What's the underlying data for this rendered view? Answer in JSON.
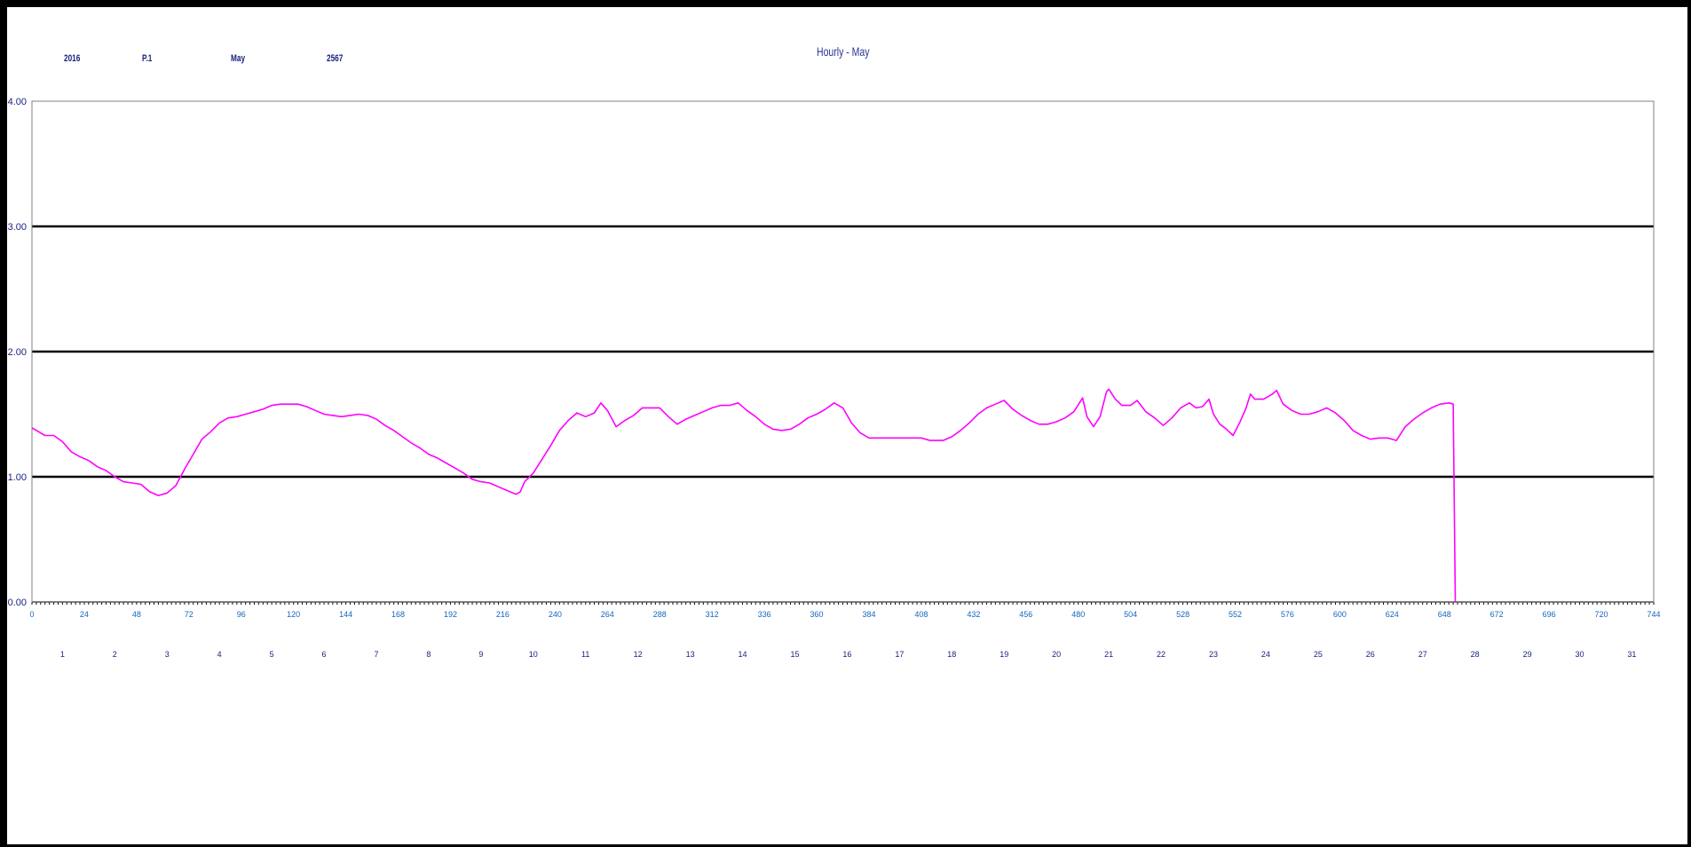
{
  "header": {
    "field1": "2016",
    "field2": "P.1",
    "field3": "May",
    "field4": "2567"
  },
  "chart_data": {
    "type": "line",
    "title": "Hourly - May",
    "xlabel": "",
    "ylabel": "",
    "xlim": [
      0,
      744
    ],
    "x_ticks": [
      0,
      24,
      48,
      72,
      96,
      120,
      144,
      168,
      192,
      216,
      240,
      264,
      288,
      312,
      336,
      360,
      384,
      408,
      432,
      456,
      480,
      504,
      528,
      552,
      576,
      600,
      624,
      648,
      672,
      696,
      720,
      744
    ],
    "x_tick_labels": [
      "0",
      "24",
      "48",
      "72",
      "96",
      "120",
      "144",
      "168",
      "192",
      "216",
      "240",
      "264",
      "288",
      "312",
      "336",
      "360",
      "384",
      "408",
      "432",
      "456",
      "480",
      "504",
      "528",
      "552",
      "576",
      "600",
      "624",
      "648",
      "672",
      "696",
      "720",
      "744"
    ],
    "day_labels": [
      "1",
      "2",
      "3",
      "4",
      "5",
      "6",
      "7",
      "8",
      "9",
      "10",
      "11",
      "12",
      "13",
      "14",
      "15",
      "16",
      "17",
      "18",
      "19",
      "20",
      "21",
      "22",
      "23",
      "24",
      "25",
      "26",
      "27",
      "28",
      "29",
      "30",
      "31"
    ],
    "ylim": [
      0,
      4
    ],
    "y_ticks": [
      0,
      1,
      2,
      3,
      4
    ],
    "y_tick_labels": [
      "0.00",
      "1.00",
      "2.00",
      "3.00",
      "4.00"
    ],
    "grid": true,
    "series": [
      {
        "color": "#ff00ff",
        "points": [
          [
            0,
            1.39
          ],
          [
            3,
            1.36
          ],
          [
            6,
            1.33
          ],
          [
            10,
            1.33
          ],
          [
            14,
            1.28
          ],
          [
            18,
            1.2
          ],
          [
            22,
            1.16
          ],
          [
            26,
            1.13
          ],
          [
            30,
            1.08
          ],
          [
            34,
            1.05
          ],
          [
            38,
            1.0
          ],
          [
            42,
            0.96
          ],
          [
            46,
            0.95
          ],
          [
            50,
            0.94
          ],
          [
            54,
            0.88
          ],
          [
            58,
            0.85
          ],
          [
            62,
            0.87
          ],
          [
            66,
            0.93
          ],
          [
            70,
            1.06
          ],
          [
            74,
            1.18
          ],
          [
            78,
            1.3
          ],
          [
            82,
            1.36
          ],
          [
            86,
            1.43
          ],
          [
            90,
            1.47
          ],
          [
            94,
            1.48
          ],
          [
            98,
            1.5
          ],
          [
            102,
            1.52
          ],
          [
            106,
            1.54
          ],
          [
            110,
            1.57
          ],
          [
            114,
            1.58
          ],
          [
            118,
            1.58
          ],
          [
            122,
            1.58
          ],
          [
            126,
            1.56
          ],
          [
            130,
            1.53
          ],
          [
            134,
            1.5
          ],
          [
            138,
            1.49
          ],
          [
            142,
            1.48
          ],
          [
            146,
            1.49
          ],
          [
            150,
            1.5
          ],
          [
            154,
            1.49
          ],
          [
            158,
            1.46
          ],
          [
            162,
            1.41
          ],
          [
            166,
            1.37
          ],
          [
            170,
            1.32
          ],
          [
            174,
            1.27
          ],
          [
            178,
            1.23
          ],
          [
            182,
            1.18
          ],
          [
            186,
            1.15
          ],
          [
            190,
            1.11
          ],
          [
            194,
            1.07
          ],
          [
            198,
            1.03
          ],
          [
            202,
            0.98
          ],
          [
            206,
            0.96
          ],
          [
            210,
            0.95
          ],
          [
            214,
            0.92
          ],
          [
            218,
            0.89
          ],
          [
            222,
            0.86
          ],
          [
            224,
            0.88
          ],
          [
            226,
            0.96
          ],
          [
            230,
            1.03
          ],
          [
            234,
            1.14
          ],
          [
            238,
            1.25
          ],
          [
            242,
            1.37
          ],
          [
            246,
            1.45
          ],
          [
            250,
            1.51
          ],
          [
            254,
            1.48
          ],
          [
            258,
            1.51
          ],
          [
            261,
            1.59
          ],
          [
            264,
            1.53
          ],
          [
            268,
            1.4
          ],
          [
            272,
            1.45
          ],
          [
            276,
            1.49
          ],
          [
            280,
            1.55
          ],
          [
            284,
            1.55
          ],
          [
            288,
            1.55
          ],
          [
            292,
            1.48
          ],
          [
            296,
            1.42
          ],
          [
            300,
            1.46
          ],
          [
            304,
            1.49
          ],
          [
            308,
            1.52
          ],
          [
            312,
            1.55
          ],
          [
            316,
            1.57
          ],
          [
            320,
            1.57
          ],
          [
            324,
            1.59
          ],
          [
            328,
            1.53
          ],
          [
            332,
            1.48
          ],
          [
            336,
            1.42
          ],
          [
            340,
            1.38
          ],
          [
            344,
            1.37
          ],
          [
            348,
            1.38
          ],
          [
            352,
            1.42
          ],
          [
            356,
            1.47
          ],
          [
            360,
            1.5
          ],
          [
            364,
            1.54
          ],
          [
            368,
            1.59
          ],
          [
            372,
            1.55
          ],
          [
            376,
            1.43
          ],
          [
            380,
            1.35
          ],
          [
            384,
            1.31
          ],
          [
            390,
            1.31
          ],
          [
            396,
            1.31
          ],
          [
            402,
            1.31
          ],
          [
            408,
            1.31
          ],
          [
            412,
            1.29
          ],
          [
            418,
            1.29
          ],
          [
            422,
            1.32
          ],
          [
            426,
            1.37
          ],
          [
            430,
            1.43
          ],
          [
            434,
            1.5
          ],
          [
            438,
            1.55
          ],
          [
            442,
            1.58
          ],
          [
            446,
            1.61
          ],
          [
            450,
            1.54
          ],
          [
            454,
            1.49
          ],
          [
            458,
            1.45
          ],
          [
            462,
            1.42
          ],
          [
            466,
            1.42
          ],
          [
            470,
            1.44
          ],
          [
            474,
            1.47
          ],
          [
            478,
            1.52
          ],
          [
            482,
            1.63
          ],
          [
            484,
            1.48
          ],
          [
            487,
            1.4
          ],
          [
            490,
            1.48
          ],
          [
            493,
            1.68
          ],
          [
            494,
            1.7
          ],
          [
            497,
            1.62
          ],
          [
            500,
            1.57
          ],
          [
            504,
            1.57
          ],
          [
            507,
            1.61
          ],
          [
            511,
            1.52
          ],
          [
            515,
            1.47
          ],
          [
            519,
            1.41
          ],
          [
            523,
            1.47
          ],
          [
            527,
            1.55
          ],
          [
            531,
            1.59
          ],
          [
            534,
            1.55
          ],
          [
            537,
            1.56
          ],
          [
            540,
            1.62
          ],
          [
            542,
            1.5
          ],
          [
            545,
            1.42
          ],
          [
            548,
            1.38
          ],
          [
            551,
            1.33
          ],
          [
            554,
            1.43
          ],
          [
            557,
            1.55
          ],
          [
            559,
            1.66
          ],
          [
            561,
            1.62
          ],
          [
            565,
            1.62
          ],
          [
            569,
            1.66
          ],
          [
            571,
            1.69
          ],
          [
            574,
            1.58
          ],
          [
            578,
            1.53
          ],
          [
            582,
            1.5
          ],
          [
            586,
            1.5
          ],
          [
            590,
            1.52
          ],
          [
            594,
            1.55
          ],
          [
            598,
            1.51
          ],
          [
            602,
            1.45
          ],
          [
            606,
            1.37
          ],
          [
            610,
            1.33
          ],
          [
            614,
            1.3
          ],
          [
            618,
            1.31
          ],
          [
            622,
            1.31
          ],
          [
            626,
            1.29
          ],
          [
            630,
            1.4
          ],
          [
            634,
            1.46
          ],
          [
            638,
            1.51
          ],
          [
            642,
            1.55
          ],
          [
            646,
            1.58
          ],
          [
            650,
            1.59
          ],
          [
            652,
            1.58
          ],
          [
            653,
            0.0
          ]
        ]
      }
    ]
  }
}
